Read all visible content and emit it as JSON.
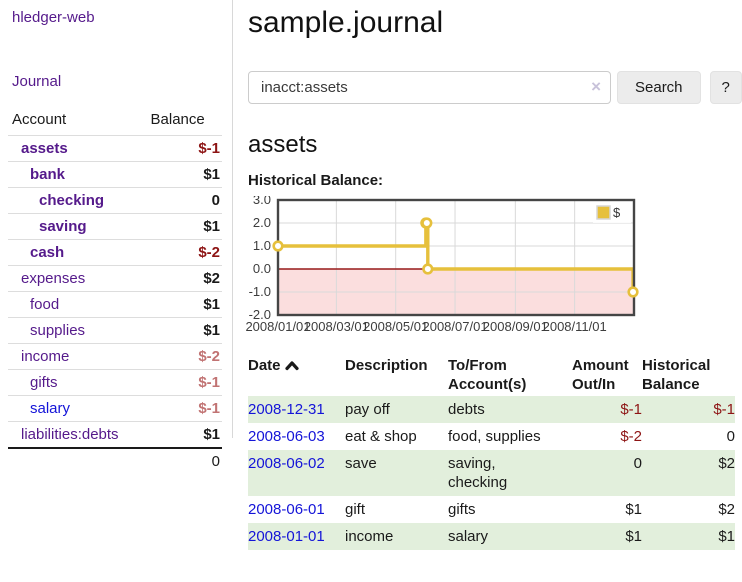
{
  "colors": {
    "link_purple": "#551a8b",
    "link_blue": "#1414d8",
    "negative_strong_red": "#8d1414",
    "negative_soft_red": "#c17373",
    "row_highlight_green": "#e2efdc",
    "chart_series_gold": "#e6c03c",
    "chart_negative_zone_pink": "#fbdede",
    "chart_zero_line_red": "#971a1a"
  },
  "sidebar": {
    "brand": "hledger-web",
    "nav": [
      {
        "label": "Journal"
      }
    ],
    "accounts_table": {
      "headers": [
        "Account",
        "Balance"
      ],
      "rows": [
        {
          "account": "assets",
          "indent": 1,
          "bold": true,
          "link": "purple",
          "balance": "$-1",
          "tone": "neg-strong"
        },
        {
          "account": "bank",
          "indent": 2,
          "bold": true,
          "link": "purple",
          "balance": "$1",
          "tone": ""
        },
        {
          "account": "checking",
          "indent": 3,
          "bold": true,
          "link": "purple",
          "balance": "0",
          "tone": ""
        },
        {
          "account": "saving",
          "indent": 3,
          "bold": true,
          "link": "purple",
          "balance": "$1",
          "tone": ""
        },
        {
          "account": "cash",
          "indent": 2,
          "bold": true,
          "link": "purple",
          "balance": "$-2",
          "tone": "neg-strong"
        },
        {
          "account": "expenses",
          "indent": 1,
          "bold": false,
          "link": "purple",
          "balance": "$2",
          "tone": ""
        },
        {
          "account": "food",
          "indent": 2,
          "bold": false,
          "link": "purple",
          "balance": "$1",
          "tone": ""
        },
        {
          "account": "supplies",
          "indent": 2,
          "bold": false,
          "link": "purple",
          "balance": "$1",
          "tone": ""
        },
        {
          "account": "income",
          "indent": 1,
          "bold": false,
          "link": "purple",
          "balance": "$-2",
          "tone": "neg-soft"
        },
        {
          "account": "gifts",
          "indent": 2,
          "bold": false,
          "link": "purple",
          "balance": "$-1",
          "tone": "neg-soft"
        },
        {
          "account": "salary",
          "indent": 2,
          "bold": false,
          "link": "blue",
          "balance": "$-1",
          "tone": "neg-soft"
        },
        {
          "account": "liabilities:debts",
          "indent": 1,
          "bold": false,
          "link": "purple",
          "balance": "$1",
          "tone": ""
        }
      ],
      "total": "0"
    }
  },
  "header": {
    "title": "sample.journal"
  },
  "search": {
    "value": "inacct:assets",
    "clear_icon": "×",
    "search_button": "Search",
    "help_button": "?"
  },
  "account_page": {
    "heading": "assets",
    "section_label": "Historical Balance:"
  },
  "chart_data": {
    "type": "line",
    "style": "step",
    "grid": true,
    "legend_position": "top-right",
    "xlim_dates": [
      "2008-01-01",
      "2009-01-01"
    ],
    "ylim": [
      -2,
      3
    ],
    "y_ticks": [
      3.0,
      2.0,
      1.0,
      0.0,
      -1.0,
      -2.0
    ],
    "x_ticks": [
      {
        "date": "2008-01-01",
        "label": "2008/01/01"
      },
      {
        "date": "2008-03-01",
        "label": "2008/03/01"
      },
      {
        "date": "2008-05-01",
        "label": "2008/05/01"
      },
      {
        "date": "2008-07-01",
        "label": "2008/07/01"
      },
      {
        "date": "2008-09-01",
        "label": "2008/09/01"
      },
      {
        "date": "2008-11-01",
        "label": "2008/11/01"
      }
    ],
    "series": [
      {
        "name": "$",
        "color": "#e6c03c",
        "points": [
          [
            "2008-01-01",
            1.0
          ],
          [
            "2008-06-01",
            2.0
          ],
          [
            "2008-06-02",
            2.0
          ],
          [
            "2008-06-03",
            0.0
          ],
          [
            "2008-12-31",
            -1.0
          ]
        ]
      }
    ],
    "negative_zone_fill": "#fbdede",
    "zero_line_color": "#971a1a",
    "border_color": "#454545",
    "gridline_color": "#d9d9d9",
    "axis_text_color": "#3d3d3d"
  },
  "register_table": {
    "headers": {
      "date": "Date",
      "description": "Description",
      "accounts": "To/From Account(s)",
      "amount": "Amount Out/In",
      "balance": "Historical Balance"
    },
    "sort": {
      "column": "date",
      "indicator": "up"
    },
    "rows": [
      {
        "date": "2008-12-31",
        "description": "pay off",
        "accounts": "debts",
        "amount": "$-1",
        "amount_tone": "neg-strong",
        "balance": "$-1",
        "balance_tone": "neg-strong",
        "highlight": true
      },
      {
        "date": "2008-06-03",
        "description": "eat & shop",
        "accounts": "food, supplies",
        "amount": "$-2",
        "amount_tone": "neg-strong",
        "balance": "0",
        "balance_tone": "",
        "highlight": false
      },
      {
        "date": "2008-06-02",
        "description": "save",
        "accounts": "saving, checking",
        "amount": "0",
        "amount_tone": "",
        "balance": "$2",
        "balance_tone": "",
        "highlight": true
      },
      {
        "date": "2008-06-01",
        "description": "gift",
        "accounts": "gifts",
        "amount": "$1",
        "amount_tone": "",
        "balance": "$2",
        "balance_tone": "",
        "highlight": false
      },
      {
        "date": "2008-01-01",
        "description": "income",
        "accounts": "salary",
        "amount": "$1",
        "amount_tone": "",
        "balance": "$1",
        "balance_tone": "",
        "highlight": true
      }
    ]
  }
}
